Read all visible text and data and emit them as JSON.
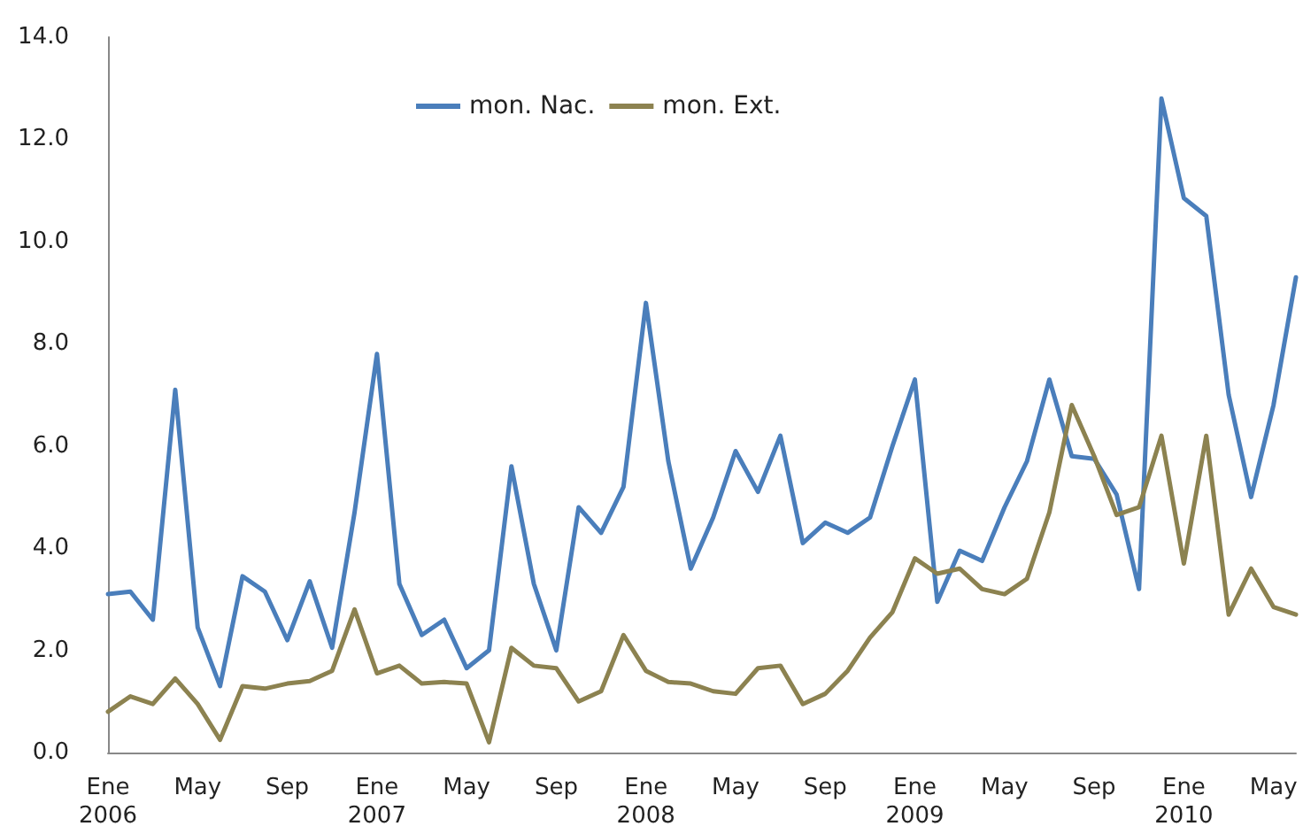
{
  "chart_data": {
    "type": "line",
    "categories": [
      "Ene\n2006",
      null,
      null,
      null,
      "May",
      null,
      null,
      null,
      "Sep",
      null,
      null,
      null,
      "Ene\n2007",
      null,
      null,
      null,
      "May",
      null,
      null,
      null,
      "Sep",
      null,
      null,
      null,
      "Ene\n2008",
      null,
      null,
      null,
      "May",
      null,
      null,
      null,
      "Sep",
      null,
      null,
      null,
      "Ene\n2009",
      null,
      null,
      null,
      "May",
      null,
      null,
      null,
      "Sep",
      null,
      null,
      null,
      "Ene\n2010",
      null,
      null,
      null,
      "May",
      null
    ],
    "series": [
      {
        "name": "mon. Nac.",
        "color": "#4a7ebb",
        "values": [
          3.1,
          3.15,
          2.6,
          7.1,
          2.45,
          1.3,
          3.45,
          3.15,
          2.2,
          3.35,
          2.05,
          4.7,
          7.8,
          3.3,
          2.3,
          2.6,
          1.65,
          2.0,
          5.6,
          3.3,
          2.0,
          4.8,
          4.3,
          5.2,
          8.8,
          5.7,
          3.6,
          4.6,
          5.9,
          5.1,
          6.2,
          4.1,
          4.5,
          4.3,
          4.6,
          6.0,
          7.3,
          2.95,
          3.95,
          3.75,
          4.8,
          5.7,
          7.3,
          5.8,
          5.75,
          5.05,
          3.2,
          12.8,
          10.85,
          10.5,
          7.0,
          5.0,
          6.8,
          9.3
        ]
      },
      {
        "name": "mon. Ext.",
        "color": "#8c8250",
        "values": [
          0.8,
          1.1,
          0.95,
          1.45,
          0.95,
          0.25,
          1.3,
          1.25,
          1.35,
          1.4,
          1.6,
          2.8,
          1.55,
          1.7,
          1.35,
          1.38,
          1.35,
          0.2,
          2.05,
          1.7,
          1.65,
          1.0,
          1.2,
          2.3,
          1.6,
          1.38,
          1.35,
          1.2,
          1.15,
          1.65,
          1.7,
          0.95,
          1.15,
          1.6,
          2.25,
          2.75,
          3.8,
          3.5,
          3.6,
          3.2,
          3.1,
          3.4,
          4.7,
          6.8,
          5.8,
          4.65,
          4.8,
          6.2,
          3.7,
          6.2,
          2.7,
          3.6,
          2.85,
          2.7
        ]
      }
    ],
    "ylim": [
      0,
      14
    ],
    "yticks": [
      {
        "value": 0,
        "label": "0.0"
      },
      {
        "value": 2,
        "label": "2.0"
      },
      {
        "value": 4,
        "label": "4.0"
      },
      {
        "value": 6,
        "label": "6.0"
      },
      {
        "value": 8,
        "label": "8.0"
      },
      {
        "value": 10,
        "label": "10.0"
      },
      {
        "value": 12,
        "label": "12.0"
      },
      {
        "value": 14,
        "label": "14.0"
      }
    ],
    "grid": false,
    "legend": "top",
    "marker": "none",
    "line_style": "solid"
  }
}
